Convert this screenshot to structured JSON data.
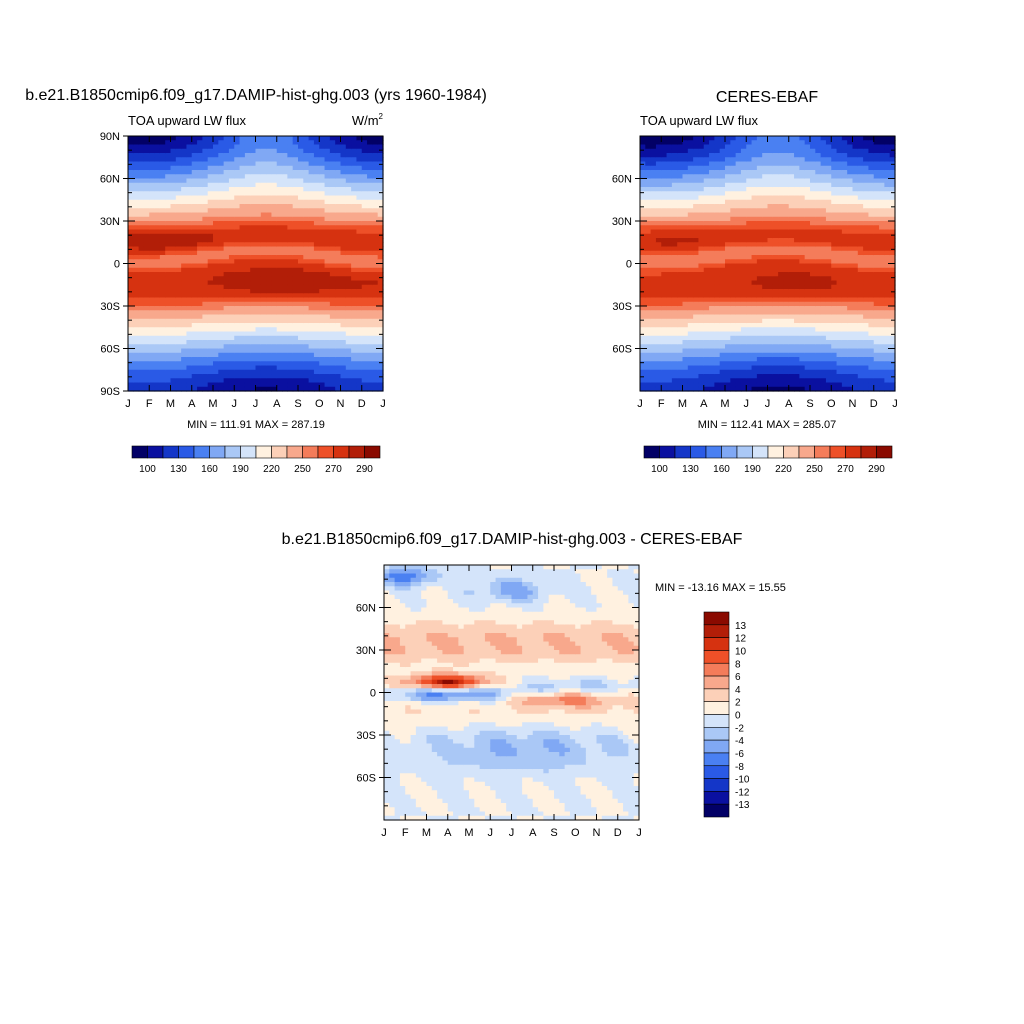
{
  "colors": {
    "model_levels": [
      "#020066",
      "#0a10a0",
      "#1436c8",
      "#2a5ae6",
      "#4a80f2",
      "#80a8f4",
      "#aac8f6",
      "#d4e4fa",
      "#fff1e0",
      "#fcd0b8",
      "#f8a88c",
      "#f47c5a",
      "#ee5028",
      "#d63210",
      "#b21e08",
      "#8a0a00"
    ],
    "diff_levels": [
      "#020066",
      "#0a10a0",
      "#1436c8",
      "#2a5ae6",
      "#4a80f2",
      "#80a8f4",
      "#aac8f6",
      "#d4e4fa",
      "#fff1e0",
      "#fcd0b8",
      "#f8a88c",
      "#f47c5a",
      "#ee5028",
      "#d63210",
      "#b21e08",
      "#8a0a00"
    ]
  },
  "chart_data": [
    {
      "type": "heatmap",
      "id": "model",
      "title": "b.e21.B1850cmip6.f09_g17.DAMIP-hist-ghg.003 (yrs 1960-1984)",
      "left_label": "TOA upward LW flux",
      "units_label": "W/m",
      "units_sup": "2",
      "x_tick_labels": [
        "J",
        "F",
        "M",
        "A",
        "M",
        "J",
        "J",
        "A",
        "S",
        "O",
        "N",
        "D",
        "J"
      ],
      "y_ticks": [
        {
          "lat": 90,
          "label": "90N"
        },
        {
          "lat": 60,
          "label": "60N"
        },
        {
          "lat": 30,
          "label": "30N"
        },
        {
          "lat": 0,
          "label": "0"
        },
        {
          "lat": -30,
          "label": "30S"
        },
        {
          "lat": -60,
          "label": "60S"
        },
        {
          "lat": -90,
          "label": "90S"
        }
      ],
      "stats": "MIN = 111.91 MAX = 287.19",
      "levels": [
        100,
        115,
        130,
        145,
        160,
        175,
        190,
        205,
        220,
        235,
        250,
        260,
        270,
        280,
        290
      ],
      "colorbar_labels": [
        {
          "level": 100,
          "label": "100"
        },
        {
          "level": 130,
          "label": "130"
        },
        {
          "level": 160,
          "label": "160"
        },
        {
          "level": 190,
          "label": "190"
        },
        {
          "level": 220,
          "label": "220"
        },
        {
          "level": 250,
          "label": "250"
        },
        {
          "level": 270,
          "label": "270"
        },
        {
          "level": 290,
          "label": "290"
        }
      ],
      "zlim": [
        111.91,
        287.19
      ]
    },
    {
      "type": "heatmap",
      "id": "obs",
      "title": "CERES-EBAF",
      "left_label": "TOA upward LW flux",
      "x_tick_labels": [
        "J",
        "F",
        "M",
        "A",
        "M",
        "J",
        "J",
        "A",
        "S",
        "O",
        "N",
        "D",
        "J"
      ],
      "y_ticks": [
        {
          "lat": 60,
          "label": "60N"
        },
        {
          "lat": 30,
          "label": "30N"
        },
        {
          "lat": 0,
          "label": "0"
        },
        {
          "lat": -30,
          "label": "30S"
        },
        {
          "lat": -60,
          "label": "60S"
        }
      ],
      "stats": "MIN = 112.41 MAX = 285.07",
      "levels": [
        100,
        115,
        130,
        145,
        160,
        175,
        190,
        205,
        220,
        235,
        250,
        260,
        270,
        280,
        290
      ],
      "colorbar_labels": [
        {
          "level": 100,
          "label": "100"
        },
        {
          "level": 130,
          "label": "130"
        },
        {
          "level": 160,
          "label": "160"
        },
        {
          "level": 190,
          "label": "190"
        },
        {
          "level": 220,
          "label": "220"
        },
        {
          "level": 250,
          "label": "250"
        },
        {
          "level": 270,
          "label": "270"
        },
        {
          "level": 290,
          "label": "290"
        }
      ],
      "zlim": [
        112.41,
        285.07
      ]
    },
    {
      "type": "heatmap",
      "id": "diff",
      "title": "b.e21.B1850cmip6.f09_g17.DAMIP-hist-ghg.003 - CERES-EBAF",
      "x_tick_labels": [
        "J",
        "F",
        "M",
        "A",
        "M",
        "J",
        "J",
        "A",
        "S",
        "O",
        "N",
        "D",
        "J"
      ],
      "y_ticks": [
        {
          "lat": 60,
          "label": "60N"
        },
        {
          "lat": 30,
          "label": "30N"
        },
        {
          "lat": 0,
          "label": "0"
        },
        {
          "lat": -30,
          "label": "30S"
        },
        {
          "lat": -60,
          "label": "60S"
        }
      ],
      "stats": "MIN = -13.16 MAX =  15.55",
      "levels": [
        -13,
        -12,
        -10,
        -8,
        -6,
        -4,
        -2,
        0,
        2,
        4,
        6,
        8,
        10,
        12,
        13
      ],
      "colorbar_labels": [
        {
          "level": 13,
          "label": "13"
        },
        {
          "level": 12,
          "label": "12"
        },
        {
          "level": 10,
          "label": "10"
        },
        {
          "level": 8,
          "label": "8"
        },
        {
          "level": 6,
          "label": "6"
        },
        {
          "level": 4,
          "label": "4"
        },
        {
          "level": 2,
          "label": "2"
        },
        {
          "level": 0,
          "label": "0"
        },
        {
          "level": -2,
          "label": "-2"
        },
        {
          "level": -4,
          "label": "-4"
        },
        {
          "level": -6,
          "label": "-6"
        },
        {
          "level": -8,
          "label": "-8"
        },
        {
          "level": -10,
          "label": "-10"
        },
        {
          "level": -12,
          "label": "-12"
        },
        {
          "level": -13,
          "label": "-13"
        }
      ],
      "zlim": [
        -13.16,
        15.55
      ]
    }
  ]
}
